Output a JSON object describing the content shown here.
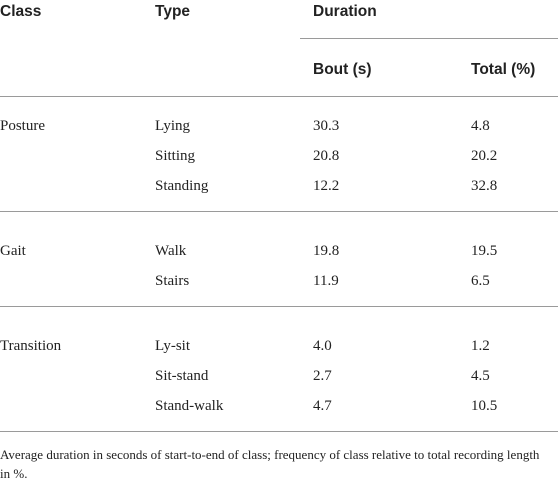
{
  "header": {
    "class": "Class",
    "type": "Type",
    "duration": "Duration",
    "bout": "Bout (s)",
    "total": "Total (%)"
  },
  "table": {
    "groups": [
      {
        "class": "Posture",
        "rows": [
          [
            "Lying",
            "30.3",
            "4.8"
          ],
          [
            "Sitting",
            "20.8",
            "20.2"
          ],
          [
            "Standing",
            "12.2",
            "32.8"
          ]
        ]
      },
      {
        "class": "Gait",
        "rows": [
          [
            "Walk",
            "19.8",
            "19.5"
          ],
          [
            "Stairs",
            "11.9",
            "6.5"
          ]
        ]
      },
      {
        "class": "Transition",
        "rows": [
          [
            "Ly-sit",
            "4.0",
            "1.2"
          ],
          [
            "Sit-stand",
            "2.7",
            "4.5"
          ],
          [
            "Stand-walk",
            "4.7",
            "10.5"
          ]
        ]
      }
    ]
  },
  "footnote": "Average duration in seconds of start-to-end of class; frequency of class relative to total recording length in %."
}
